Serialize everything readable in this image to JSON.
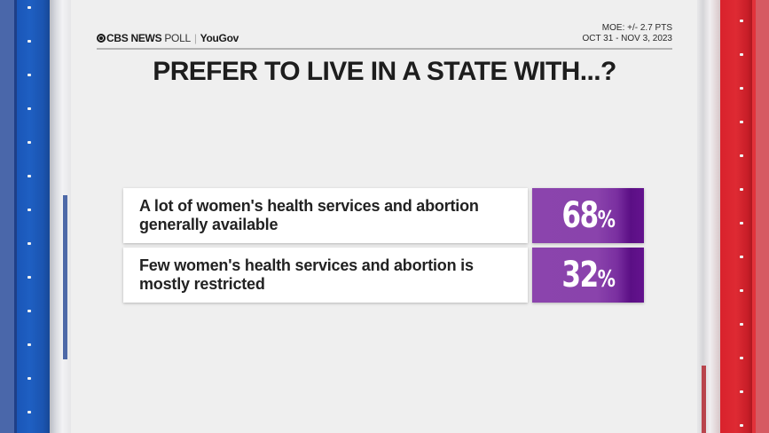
{
  "header": {
    "logo": {
      "brand": "CBS NEWS",
      "poll": "POLL",
      "separator": "|",
      "partner": "YouGov"
    },
    "moe": "MOE: +/- 2.7 PTS",
    "dates": "OCT 31 - NOV 3, 2023"
  },
  "title": "PREFER TO LIVE IN A STATE WITH...?",
  "rows": [
    {
      "label": "A lot of women's health services and abortion generally available",
      "value": "68",
      "suffix": "%"
    },
    {
      "label": "Few women's health services and abortion is mostly restricted",
      "value": "32",
      "suffix": "%"
    }
  ],
  "colors": {
    "value_box": "#8b44ad",
    "value_box_dark": "#5b0f85",
    "left_pillar": "#1e5fc2",
    "right_pillar": "#de2a33",
    "background": "#efefef"
  },
  "chart_data": {
    "type": "table",
    "title": "PREFER TO LIVE IN A STATE WITH...?",
    "categories": [
      "A lot of women's health services and abortion generally available",
      "Few women's health services and abortion is mostly restricted"
    ],
    "values": [
      68,
      32
    ],
    "unit": "%",
    "source": "CBS NEWS POLL | YouGov",
    "annotations": [
      "MOE: +/- 2.7 PTS",
      "OCT 31 - NOV 3, 2023"
    ]
  }
}
